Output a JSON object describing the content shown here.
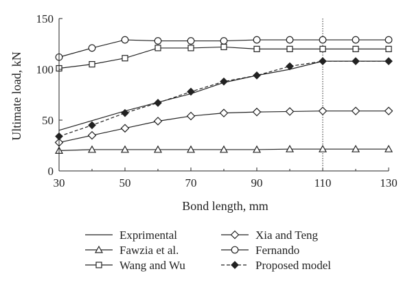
{
  "chart_data": {
    "type": "line",
    "xlabel": "Bond length, mm",
    "ylabel": "Ultimate load, kN",
    "xlim": [
      30,
      130
    ],
    "ylim": [
      0,
      150
    ],
    "xticks": [
      "30",
      "50",
      "70",
      "90",
      "110",
      "130"
    ],
    "yticks": [
      "0",
      "50",
      "100",
      "150"
    ],
    "grid": false,
    "vertical_reference_line_x": 110,
    "legend_position": "bottom",
    "series": [
      {
        "name": "Exprimental",
        "marker": "none",
        "style": "solid",
        "x": [
          30,
          50,
          70,
          80,
          90,
          100,
          110,
          130
        ],
        "y": [
          40,
          59,
          76,
          87,
          94,
          100,
          108,
          108
        ]
      },
      {
        "name": "Xia and Teng",
        "marker": "diamond-open",
        "style": "solid",
        "x": [
          30,
          40,
          50,
          60,
          70,
          80,
          90,
          100,
          110,
          120,
          130
        ],
        "y": [
          28,
          35,
          42,
          49,
          54,
          57,
          58,
          58.5,
          59,
          59,
          59
        ]
      },
      {
        "name": "Fawzia et al.",
        "marker": "triangle-open",
        "style": "solid",
        "x": [
          30,
          40,
          50,
          60,
          70,
          80,
          90,
          100,
          110,
          120,
          130
        ],
        "y": [
          20,
          21,
          21,
          21,
          21,
          21,
          21,
          21.5,
          21.5,
          21.5,
          21.5
        ]
      },
      {
        "name": "Fernando",
        "marker": "circle-open",
        "style": "solid",
        "x": [
          30,
          40,
          50,
          60,
          70,
          80,
          90,
          100,
          110,
          120,
          130
        ],
        "y": [
          112,
          121,
          129,
          128,
          128,
          128,
          129,
          129,
          129,
          129,
          129
        ]
      },
      {
        "name": "Wang and Wu",
        "marker": "square-open",
        "style": "solid",
        "x": [
          30,
          40,
          50,
          60,
          70,
          80,
          90,
          100,
          110,
          120,
          130
        ],
        "y": [
          101,
          105,
          111,
          121,
          121,
          122,
          120,
          120,
          120,
          120,
          120
        ]
      },
      {
        "name": "Proposed model",
        "marker": "diamond-filled",
        "style": "dashed",
        "x": [
          30,
          40,
          50,
          60,
          70,
          80,
          90,
          100,
          110,
          120,
          130
        ],
        "y": [
          34,
          45,
          57,
          67,
          78,
          88,
          94,
          103,
          108,
          108,
          108
        ]
      }
    ]
  }
}
